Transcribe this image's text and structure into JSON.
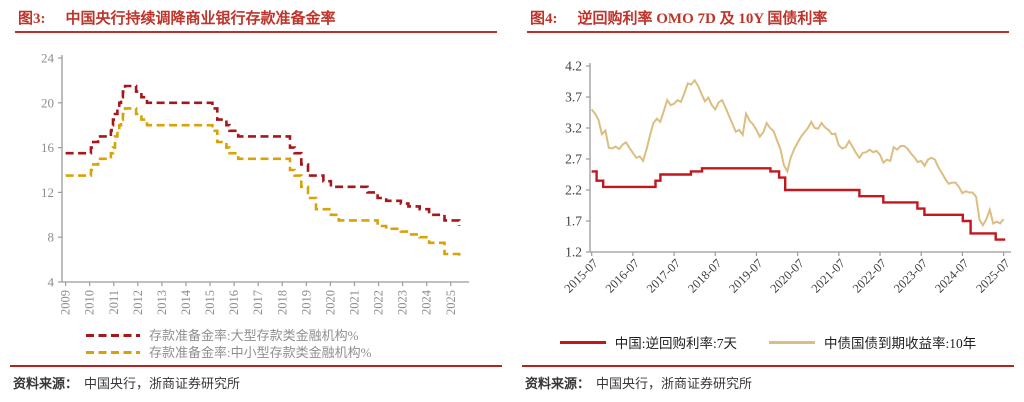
{
  "colors": {
    "title_red": "#BE342B",
    "rule_red": "#BD2F27",
    "bottom_rule_red": "#B2251E",
    "axis_gray": "#9B9B9B",
    "left_tick_text": "#8E8E8E",
    "right_tick_text": "#3F3F3F",
    "legend_text_left": "#8F8F8F",
    "legend_text_right": "#1E1E1E",
    "source_text": "#383838",
    "series_dark_red": "#A5171B",
    "series_gold": "#D8A306",
    "series_bright_red": "#C2171D",
    "series_tan": "#DBBE82"
  },
  "figure3": {
    "label": "图3:",
    "title": "中国央行持续调降商业银行存款准备金率",
    "source_label": "资料来源：",
    "source_text": "中国央行，浙商证券研究所"
  },
  "figure4": {
    "label": "图4:",
    "title": "逆回购利率 OMO 7D 及 10Y 国债利率",
    "source_label": "资料来源：",
    "source_text": "中国央行，浙商证券研究所"
  },
  "chart_data": [
    {
      "type": "line",
      "title": "中国央行持续调降商业银行存款准备金率",
      "unit": "%",
      "grid": false,
      "legend_position": "bottom",
      "xlim": [
        2008.85,
        2025.55
      ],
      "ylim": [
        4,
        24
      ],
      "y_ticks": [
        "24",
        "20",
        "16",
        "12",
        "8",
        "4"
      ],
      "x_ticks": [
        "2009",
        "2010",
        "2011",
        "2012",
        "2013",
        "2014",
        "2015",
        "2016",
        "2017",
        "2018",
        "2019",
        "2020",
        "2021",
        "2022",
        "2023",
        "2024",
        "2025"
      ],
      "series": [
        {
          "name": "存款准备金率:大型存款类金融机构%",
          "color": "#A5171B",
          "style": "dashed",
          "step": true,
          "points": [
            [
              2009.0,
              15.5
            ],
            [
              2010.05,
              16
            ],
            [
              2010.15,
              16.5
            ],
            [
              2010.35,
              17
            ],
            [
              2010.88,
              17.5
            ],
            [
              2010.91,
              18
            ],
            [
              2010.97,
              18.5
            ],
            [
              2011.05,
              19
            ],
            [
              2011.15,
              19.5
            ],
            [
              2011.23,
              20
            ],
            [
              2011.3,
              20.5
            ],
            [
              2011.38,
              21
            ],
            [
              2011.47,
              21.5
            ],
            [
              2011.93,
              21
            ],
            [
              2012.15,
              20.5
            ],
            [
              2012.38,
              20
            ],
            [
              2015.1,
              19.5
            ],
            [
              2015.3,
              18.5
            ],
            [
              2015.68,
              18
            ],
            [
              2015.81,
              17.5
            ],
            [
              2016.17,
              17
            ],
            [
              2018.32,
              16
            ],
            [
              2018.51,
              15.5
            ],
            [
              2018.79,
              14.5
            ],
            [
              2019.07,
              13.5
            ],
            [
              2019.71,
              13
            ],
            [
              2020.02,
              12.5
            ],
            [
              2021.54,
              12
            ],
            [
              2021.96,
              11.5
            ],
            [
              2022.32,
              11.25
            ],
            [
              2022.93,
              11
            ],
            [
              2023.24,
              10.75
            ],
            [
              2023.71,
              10.5
            ],
            [
              2024.1,
              10
            ],
            [
              2024.74,
              9.5
            ],
            [
              2025.35,
              9
            ]
          ]
        },
        {
          "name": "存款准备金率:中小型存款类金融机构%",
          "color": "#D8A306",
          "style": "dashed",
          "step": true,
          "points": [
            [
              2009.0,
              13.5
            ],
            [
              2010.05,
              14
            ],
            [
              2010.15,
              14.5
            ],
            [
              2010.35,
              15
            ],
            [
              2010.88,
              15.5
            ],
            [
              2010.97,
              16
            ],
            [
              2011.05,
              17
            ],
            [
              2011.15,
              17.5
            ],
            [
              2011.23,
              18
            ],
            [
              2011.3,
              18.5
            ],
            [
              2011.38,
              19
            ],
            [
              2011.47,
              19.5
            ],
            [
              2011.93,
              19
            ],
            [
              2012.15,
              18.5
            ],
            [
              2012.38,
              18
            ],
            [
              2015.1,
              17.5
            ],
            [
              2015.3,
              16.5
            ],
            [
              2015.68,
              16
            ],
            [
              2015.81,
              15.5
            ],
            [
              2016.17,
              15
            ],
            [
              2018.32,
              14
            ],
            [
              2018.51,
              13.5
            ],
            [
              2018.79,
              12.5
            ],
            [
              2019.07,
              11.5
            ],
            [
              2019.4,
              10.5
            ],
            [
              2020.02,
              10
            ],
            [
              2020.35,
              9.5
            ],
            [
              2021.96,
              9
            ],
            [
              2022.32,
              8.75
            ],
            [
              2022.93,
              8.5
            ],
            [
              2023.24,
              8.25
            ],
            [
              2023.71,
              8
            ],
            [
              2024.1,
              7.5
            ],
            [
              2024.74,
              6.5
            ],
            [
              2025.35,
              6
            ]
          ]
        }
      ]
    },
    {
      "type": "line",
      "title": "逆回购利率 OMO 7D 及 10Y 国债利率",
      "unit": "%",
      "grid": false,
      "legend_position": "bottom",
      "xlim": [
        2015.5,
        2025.6
      ],
      "ylim": [
        1.2,
        4.2
      ],
      "y_ticks": [
        "4.2",
        "3.7",
        "3.2",
        "2.7",
        "2.2",
        "1.7",
        "1.2"
      ],
      "x_ticks": [
        "2015-07",
        "2016-07",
        "2017-07",
        "2018-07",
        "2019-07",
        "2020-07",
        "2021-07",
        "2022-07",
        "2023-07",
        "2024-07",
        "2025-07"
      ],
      "series": [
        {
          "name": "中国:逆回购利率:7天",
          "color": "#C2171D",
          "style": "solid",
          "step": true,
          "points": [
            [
              2015.54,
              2.5
            ],
            [
              2015.66,
              2.35
            ],
            [
              2015.82,
              2.25
            ],
            [
              2017.09,
              2.35
            ],
            [
              2017.21,
              2.45
            ],
            [
              2017.95,
              2.5
            ],
            [
              2018.22,
              2.55
            ],
            [
              2019.88,
              2.5
            ],
            [
              2020.09,
              2.4
            ],
            [
              2020.24,
              2.2
            ],
            [
              2022.04,
              2.1
            ],
            [
              2022.62,
              2.0
            ],
            [
              2023.45,
              1.9
            ],
            [
              2023.62,
              1.8
            ],
            [
              2024.55,
              1.7
            ],
            [
              2024.74,
              1.5
            ],
            [
              2025.35,
              1.4
            ],
            [
              2025.58,
              1.4
            ]
          ]
        },
        {
          "name": "中债国债到期收益率:10年",
          "color": "#DBBE82",
          "style": "solid",
          "x_start": 2015.54,
          "x_step_months": 1,
          "values": [
            3.5,
            3.43,
            3.33,
            3.1,
            3.16,
            2.88,
            2.87,
            2.9,
            2.86,
            2.93,
            2.97,
            2.88,
            2.8,
            2.72,
            2.74,
            2.67,
            2.86,
            3.08,
            3.28,
            3.35,
            3.3,
            3.47,
            3.65,
            3.57,
            3.59,
            3.65,
            3.62,
            3.76,
            3.92,
            3.9,
            3.97,
            3.88,
            3.75,
            3.63,
            3.69,
            3.57,
            3.5,
            3.61,
            3.65,
            3.53,
            3.4,
            3.27,
            3.14,
            3.17,
            3.09,
            3.43,
            3.32,
            3.26,
            3.17,
            3.06,
            3.13,
            3.28,
            3.2,
            3.15,
            3.0,
            2.86,
            2.6,
            2.5,
            2.72,
            2.86,
            2.96,
            3.06,
            3.13,
            3.2,
            3.3,
            3.2,
            3.19,
            3.28,
            3.21,
            3.17,
            3.1,
            3.11,
            2.92,
            2.87,
            2.89,
            2.99,
            2.9,
            2.8,
            2.72,
            2.8,
            2.81,
            2.85,
            2.81,
            2.83,
            2.77,
            2.64,
            2.69,
            2.67,
            2.89,
            2.85,
            2.91,
            2.91,
            2.87,
            2.79,
            2.73,
            2.65,
            2.67,
            2.59,
            2.69,
            2.72,
            2.69,
            2.57,
            2.48,
            2.38,
            2.3,
            2.32,
            2.32,
            2.25,
            2.15,
            2.18,
            2.16,
            2.16,
            2.09,
            1.72,
            1.63,
            1.73,
            1.88,
            1.66,
            1.69,
            1.66,
            1.73
          ]
        }
      ]
    }
  ]
}
